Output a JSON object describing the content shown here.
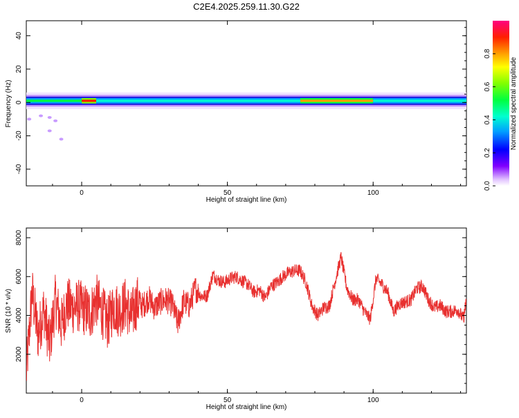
{
  "title": "C2E4.2025.259.11.30.G22",
  "chart_data": [
    {
      "type": "heatmap",
      "xlabel": "Height of straight line (km)",
      "ylabel": "Frequency (Hz)",
      "xlim": [
        -19,
        132
      ],
      "ylim": [
        -50,
        49
      ],
      "xticks": [
        0,
        50,
        100
      ],
      "yticks": [
        -40,
        -20,
        0,
        20,
        40
      ],
      "colorbar": {
        "label": "Normalized spectral amplitude",
        "range": [
          0,
          1
        ],
        "ticks": [
          "0.0",
          "0.2",
          "0.4",
          "0.6",
          "0.8"
        ],
        "tick_values": [
          0.0,
          0.2,
          0.4,
          0.6,
          0.8
        ]
      },
      "band": {
        "center_freq_hz": 1,
        "segments": [
          {
            "x": [
              -19,
              0
            ],
            "amplitude": 0.55
          },
          {
            "x": [
              0,
              5
            ],
            "amplitude": 0.95
          },
          {
            "x": [
              5,
              75
            ],
            "amplitude": 0.5
          },
          {
            "x": [
              75,
              100
            ],
            "amplitude": 0.8
          },
          {
            "x": [
              100,
              132
            ],
            "amplitude": 0.5
          }
        ],
        "scatter_near_start": [
          {
            "x": -18,
            "f": -10
          },
          {
            "x": -14,
            "f": -8
          },
          {
            "x": -11,
            "f": -9
          },
          {
            "x": -11,
            "f": -17
          },
          {
            "x": -7,
            "f": -22
          },
          {
            "x": -9,
            "f": -11
          }
        ]
      },
      "grid": false
    },
    {
      "type": "line",
      "xlabel": "Height of straight line (km)",
      "ylabel": "SNR (10 * v/v)",
      "xlim": [
        -19,
        132
      ],
      "ylim": [
        0,
        8500
      ],
      "xticks": [
        0,
        50,
        100
      ],
      "yticks": [
        2000,
        4000,
        6000,
        8000
      ],
      "series": [
        {
          "color": "#e8302f",
          "x": [
            -19,
            -17,
            -15,
            -13,
            -11,
            -9,
            -7,
            -5,
            -3,
            -1,
            1,
            3,
            5,
            7,
            9,
            11,
            13,
            15,
            17,
            19,
            21,
            23,
            25,
            27,
            29,
            31,
            33,
            35,
            37,
            39,
            41,
            43,
            45,
            47,
            49,
            51,
            53,
            55,
            57,
            59,
            61,
            63,
            65,
            67,
            69,
            71,
            73,
            75,
            77,
            79,
            81,
            83,
            85,
            87,
            89,
            91,
            93,
            95,
            97,
            99,
            101,
            103,
            105,
            107,
            109,
            111,
            113,
            115,
            117,
            119,
            121,
            123,
            125,
            127,
            129,
            131,
            132
          ],
          "y": [
            1000,
            5200,
            3000,
            4300,
            2500,
            4800,
            3500,
            4600,
            4400,
            4500,
            4300,
            4100,
            4800,
            4200,
            3600,
            4500,
            4200,
            4600,
            3900,
            4700,
            4500,
            4900,
            4400,
            4700,
            4800,
            4600,
            3600,
            4700,
            4500,
            5400,
            5000,
            5000,
            6100,
            5800,
            5700,
            5900,
            6000,
            5800,
            5600,
            5200,
            5300,
            4900,
            5500,
            5700,
            6000,
            6200,
            6300,
            6300,
            5700,
            4500,
            4000,
            4400,
            4500,
            5800,
            7000,
            5400,
            4800,
            4800,
            4200,
            3800,
            5900,
            5600,
            5200,
            4200,
            4600,
            4700,
            4800,
            5400,
            5500,
            4800,
            4400,
            4500,
            4200,
            4200,
            4300,
            3800,
            4800
          ]
        }
      ],
      "grid": false
    }
  ]
}
